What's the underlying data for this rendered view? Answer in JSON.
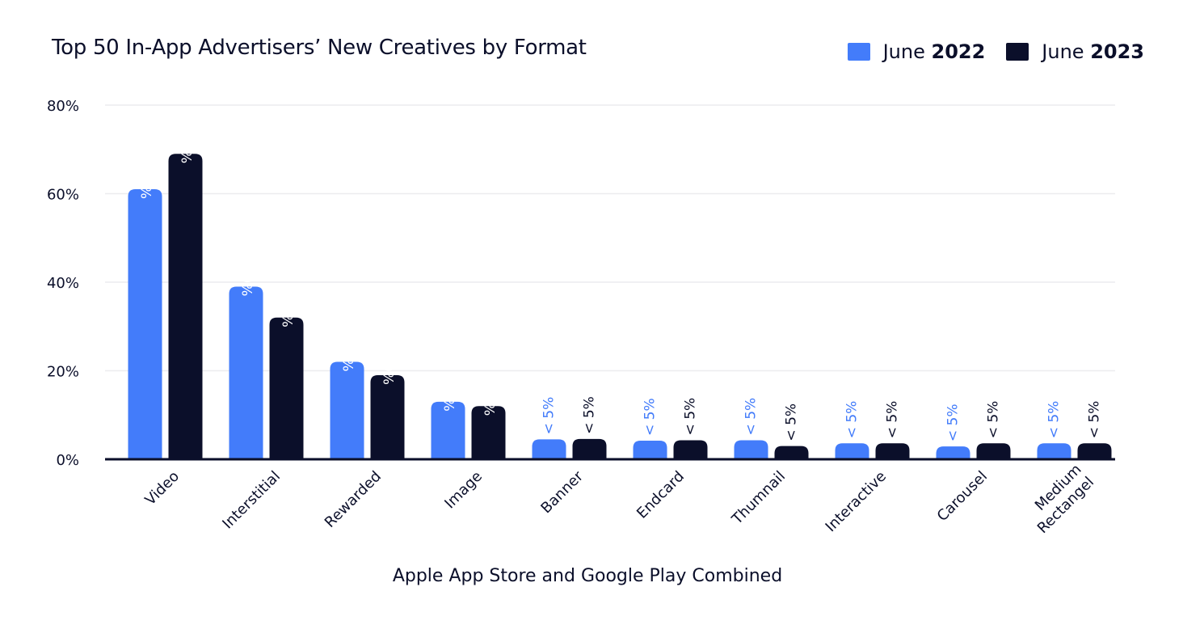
{
  "chart_data": {
    "type": "bar",
    "title": "Top 50 In-App Advertisers’ New Creatives by Format",
    "xlabel": "Apple App Store and Google Play Combined",
    "ylabel": "",
    "ylim": [
      0,
      80
    ],
    "yticks": [
      "0%",
      "20%",
      "40%",
      "60%",
      "80%"
    ],
    "grid": true,
    "legend_position": "top-right",
    "categories": [
      "Video",
      "Interstitial",
      "Rewarded",
      "Image",
      "Banner",
      "Endcard",
      "Thumnail",
      "Interactive",
      "Carousel",
      "Medium Rectangel"
    ],
    "series": [
      {
        "name": "June 2022",
        "name_prefix": "June",
        "name_year": "2022",
        "color": "#437CFA",
        "values": [
          61,
          39,
          22,
          13,
          4.5,
          4.2,
          4.3,
          3.6,
          2.9,
          3.6
        ],
        "labels": [
          "61%",
          "39%",
          "22%",
          "13%",
          "< 5%",
          "< 5%",
          "< 5%",
          "< 5%",
          "< 5%",
          "< 5%"
        ]
      },
      {
        "name": "June 2023",
        "name_prefix": "June",
        "name_year": "2023",
        "color": "#0B0F2A",
        "values": [
          69,
          32,
          19,
          12,
          4.6,
          4.3,
          3.0,
          3.6,
          3.6,
          3.6
        ],
        "labels": [
          "69%",
          "32%",
          "19%",
          "12%",
          "< 5%",
          "< 5%",
          "< 5%",
          "< 5%",
          "< 5%",
          "< 5%"
        ]
      }
    ]
  }
}
